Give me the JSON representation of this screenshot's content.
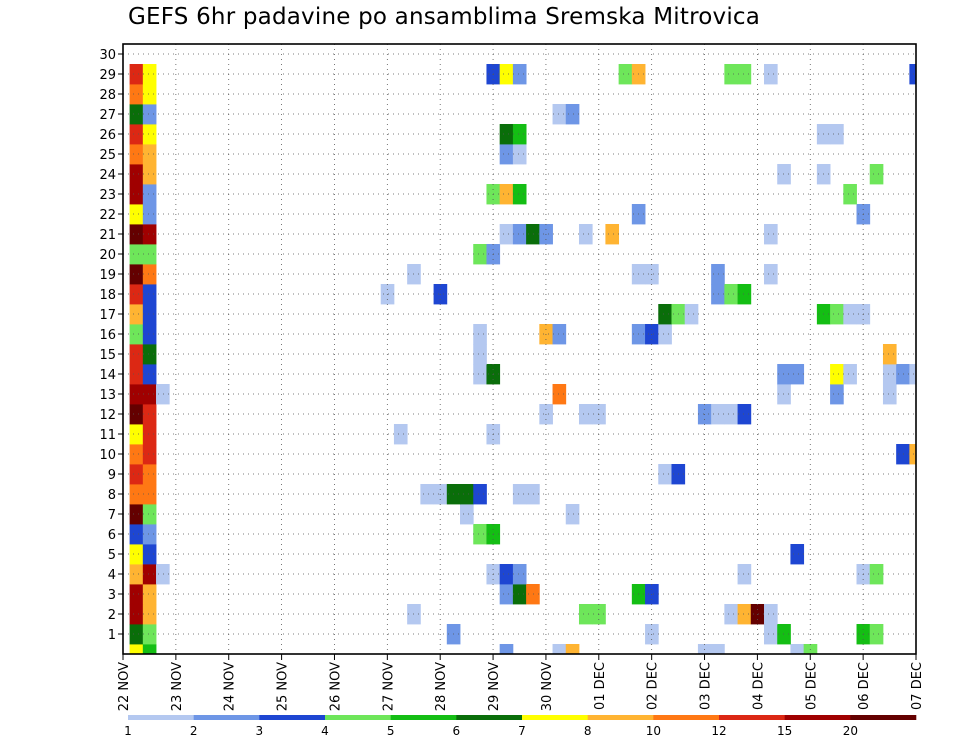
{
  "chart_data": {
    "type": "heatmap",
    "title": "GEFS 6hr padavine po ansamblima Sremska Mitrovica",
    "xlabel": "",
    "ylabel": "",
    "x_ticks": [
      "22 NOV",
      "23 NOV",
      "24 NOV",
      "25 NOV",
      "26 NOV",
      "27 NOV",
      "28 NOV",
      "29 NOV",
      "30 NOV",
      "01 DEC",
      "02 DEC",
      "03 DEC",
      "04 DEC",
      "05 DEC",
      "06 DEC",
      "07 DEC"
    ],
    "x_range": [
      0,
      60
    ],
    "x_unit": "6-hour steps after 22 NOV 00Z",
    "members": [
      0,
      1,
      2,
      3,
      4,
      5,
      6,
      7,
      8,
      9,
      10,
      11,
      12,
      13,
      14,
      15,
      16,
      17,
      18,
      19,
      20,
      21,
      22,
      23,
      24,
      25,
      26,
      27,
      28,
      29,
      30
    ],
    "y_ticks": [
      1,
      2,
      3,
      4,
      5,
      6,
      7,
      8,
      9,
      10,
      11,
      12,
      13,
      14,
      15,
      16,
      17,
      18,
      19,
      20,
      21,
      22,
      23,
      24,
      25,
      26,
      27,
      28,
      29,
      30
    ],
    "grid": true,
    "colorbar": {
      "colors": [
        "#b4c8f0",
        "#6e96e6",
        "#1e46d2",
        "#6ee65a",
        "#14be14",
        "#0a6e0a",
        "#ffff00",
        "#ffb432",
        "#ff7814",
        "#dc2814",
        "#a00000",
        "#640000"
      ],
      "labels": [
        {
          "text": "1",
          "pos": 0
        },
        {
          "text": "2",
          "pos": 1
        },
        {
          "text": "3",
          "pos": 2
        },
        {
          "text": "4",
          "pos": 3
        },
        {
          "text": "5",
          "pos": 4
        },
        {
          "text": "6",
          "pos": 5
        },
        {
          "text": "7",
          "pos": 6
        },
        {
          "text": "8",
          "pos": 7
        },
        {
          "text": "10",
          "pos": 8
        },
        {
          "text": "12",
          "pos": 9
        },
        {
          "text": "15",
          "pos": 10
        },
        {
          "text": "20",
          "pos": 11
        }
      ]
    },
    "cells": [
      {
        "m": 0,
        "t": 1,
        "c": 6
      },
      {
        "m": 0,
        "t": 2,
        "c": 4
      },
      {
        "m": 0,
        "t": 29,
        "c": 1
      },
      {
        "m": 0,
        "t": 33,
        "c": 0
      },
      {
        "m": 0,
        "t": 34,
        "c": 7
      },
      {
        "m": 0,
        "t": 44,
        "c": 0
      },
      {
        "m": 0,
        "t": 45,
        "c": 0
      },
      {
        "m": 0,
        "t": 51,
        "c": 0
      },
      {
        "m": 0,
        "t": 52,
        "c": 3
      },
      {
        "m": 1,
        "t": 1,
        "c": 5
      },
      {
        "m": 1,
        "t": 2,
        "c": 3
      },
      {
        "m": 1,
        "t": 25,
        "c": 1
      },
      {
        "m": 1,
        "t": 40,
        "c": 0
      },
      {
        "m": 1,
        "t": 49,
        "c": 0
      },
      {
        "m": 1,
        "t": 50,
        "c": 4
      },
      {
        "m": 1,
        "t": 56,
        "c": 4
      },
      {
        "m": 1,
        "t": 57,
        "c": 3
      },
      {
        "m": 2,
        "t": 1,
        "c": 10
      },
      {
        "m": 2,
        "t": 2,
        "c": 7
      },
      {
        "m": 2,
        "t": 22,
        "c": 0
      },
      {
        "m": 2,
        "t": 35,
        "c": 3
      },
      {
        "m": 2,
        "t": 36,
        "c": 3
      },
      {
        "m": 2,
        "t": 46,
        "c": 0
      },
      {
        "m": 2,
        "t": 47,
        "c": 7
      },
      {
        "m": 2,
        "t": 48,
        "c": 11
      },
      {
        "m": 2,
        "t": 49,
        "c": 0
      },
      {
        "m": 3,
        "t": 1,
        "c": 10
      },
      {
        "m": 3,
        "t": 2,
        "c": 7
      },
      {
        "m": 3,
        "t": 29,
        "c": 1
      },
      {
        "m": 3,
        "t": 30,
        "c": 5
      },
      {
        "m": 3,
        "t": 31,
        "c": 8
      },
      {
        "m": 3,
        "t": 39,
        "c": 4
      },
      {
        "m": 3,
        "t": 40,
        "c": 2
      },
      {
        "m": 4,
        "t": 1,
        "c": 7
      },
      {
        "m": 4,
        "t": 2,
        "c": 10
      },
      {
        "m": 4,
        "t": 3,
        "c": 0
      },
      {
        "m": 4,
        "t": 28,
        "c": 0
      },
      {
        "m": 4,
        "t": 29,
        "c": 2
      },
      {
        "m": 4,
        "t": 30,
        "c": 1
      },
      {
        "m": 4,
        "t": 47,
        "c": 0
      },
      {
        "m": 4,
        "t": 56,
        "c": 0
      },
      {
        "m": 4,
        "t": 57,
        "c": 3
      },
      {
        "m": 5,
        "t": 1,
        "c": 6
      },
      {
        "m": 5,
        "t": 2,
        "c": 2
      },
      {
        "m": 5,
        "t": 51,
        "c": 2
      },
      {
        "m": 6,
        "t": 1,
        "c": 2
      },
      {
        "m": 6,
        "t": 2,
        "c": 1
      },
      {
        "m": 6,
        "t": 27,
        "c": 3
      },
      {
        "m": 6,
        "t": 28,
        "c": 4
      },
      {
        "m": 7,
        "t": 1,
        "c": 11
      },
      {
        "m": 7,
        "t": 2,
        "c": 3
      },
      {
        "m": 7,
        "t": 26,
        "c": 0
      },
      {
        "m": 7,
        "t": 34,
        "c": 0
      },
      {
        "m": 8,
        "t": 1,
        "c": 8
      },
      {
        "m": 8,
        "t": 2,
        "c": 8
      },
      {
        "m": 8,
        "t": 23,
        "c": 0
      },
      {
        "m": 8,
        "t": 24,
        "c": 0
      },
      {
        "m": 8,
        "t": 25,
        "c": 5
      },
      {
        "m": 8,
        "t": 26,
        "c": 5
      },
      {
        "m": 8,
        "t": 27,
        "c": 2
      },
      {
        "m": 8,
        "t": 30,
        "c": 0
      },
      {
        "m": 8,
        "t": 31,
        "c": 0
      },
      {
        "m": 9,
        "t": 1,
        "c": 9
      },
      {
        "m": 9,
        "t": 2,
        "c": 8
      },
      {
        "m": 9,
        "t": 41,
        "c": 0
      },
      {
        "m": 9,
        "t": 42,
        "c": 2
      },
      {
        "m": 10,
        "t": 1,
        "c": 8
      },
      {
        "m": 10,
        "t": 2,
        "c": 9
      },
      {
        "m": 10,
        "t": 59,
        "c": 2
      },
      {
        "m": 10,
        "t": 60,
        "c": 7
      },
      {
        "m": 11,
        "t": 1,
        "c": 6
      },
      {
        "m": 11,
        "t": 2,
        "c": 9
      },
      {
        "m": 11,
        "t": 21,
        "c": 0
      },
      {
        "m": 11,
        "t": 28,
        "c": 0
      },
      {
        "m": 12,
        "t": 1,
        "c": 11
      },
      {
        "m": 12,
        "t": 2,
        "c": 9
      },
      {
        "m": 12,
        "t": 32,
        "c": 0
      },
      {
        "m": 12,
        "t": 35,
        "c": 0
      },
      {
        "m": 12,
        "t": 36,
        "c": 0
      },
      {
        "m": 12,
        "t": 44,
        "c": 1
      },
      {
        "m": 12,
        "t": 45,
        "c": 0
      },
      {
        "m": 12,
        "t": 46,
        "c": 0
      },
      {
        "m": 12,
        "t": 47,
        "c": 2
      },
      {
        "m": 13,
        "t": 1,
        "c": 10
      },
      {
        "m": 13,
        "t": 2,
        "c": 10
      },
      {
        "m": 13,
        "t": 3,
        "c": 0
      },
      {
        "m": 13,
        "t": 33,
        "c": 8
      },
      {
        "m": 13,
        "t": 50,
        "c": 0
      },
      {
        "m": 13,
        "t": 54,
        "c": 1
      },
      {
        "m": 13,
        "t": 58,
        "c": 0
      },
      {
        "m": 14,
        "t": 1,
        "c": 9
      },
      {
        "m": 14,
        "t": 2,
        "c": 2
      },
      {
        "m": 14,
        "t": 27,
        "c": 0
      },
      {
        "m": 14,
        "t": 28,
        "c": 5
      },
      {
        "m": 14,
        "t": 50,
        "c": 1
      },
      {
        "m": 14,
        "t": 51,
        "c": 1
      },
      {
        "m": 14,
        "t": 54,
        "c": 6
      },
      {
        "m": 14,
        "t": 55,
        "c": 0
      },
      {
        "m": 14,
        "t": 58,
        "c": 0
      },
      {
        "m": 14,
        "t": 59,
        "c": 1
      },
      {
        "m": 14,
        "t": 60,
        "c": 0
      },
      {
        "m": 15,
        "t": 1,
        "c": 9
      },
      {
        "m": 15,
        "t": 2,
        "c": 5
      },
      {
        "m": 15,
        "t": 27,
        "c": 0
      },
      {
        "m": 15,
        "t": 58,
        "c": 7
      },
      {
        "m": 16,
        "t": 1,
        "c": 3
      },
      {
        "m": 16,
        "t": 2,
        "c": 2
      },
      {
        "m": 16,
        "t": 27,
        "c": 0
      },
      {
        "m": 16,
        "t": 32,
        "c": 7
      },
      {
        "m": 16,
        "t": 33,
        "c": 1
      },
      {
        "m": 16,
        "t": 39,
        "c": 1
      },
      {
        "m": 16,
        "t": 40,
        "c": 2
      },
      {
        "m": 16,
        "t": 41,
        "c": 0
      },
      {
        "m": 17,
        "t": 1,
        "c": 7
      },
      {
        "m": 17,
        "t": 2,
        "c": 2
      },
      {
        "m": 17,
        "t": 41,
        "c": 5
      },
      {
        "m": 17,
        "t": 42,
        "c": 3
      },
      {
        "m": 17,
        "t": 43,
        "c": 0
      },
      {
        "m": 17,
        "t": 53,
        "c": 4
      },
      {
        "m": 17,
        "t": 54,
        "c": 3
      },
      {
        "m": 17,
        "t": 55,
        "c": 0
      },
      {
        "m": 17,
        "t": 56,
        "c": 0
      },
      {
        "m": 18,
        "t": 1,
        "c": 9
      },
      {
        "m": 18,
        "t": 2,
        "c": 2
      },
      {
        "m": 18,
        "t": 20,
        "c": 0
      },
      {
        "m": 18,
        "t": 24,
        "c": 2
      },
      {
        "m": 18,
        "t": 45,
        "c": 1
      },
      {
        "m": 18,
        "t": 46,
        "c": 3
      },
      {
        "m": 18,
        "t": 47,
        "c": 4
      },
      {
        "m": 19,
        "t": 1,
        "c": 11
      },
      {
        "m": 19,
        "t": 2,
        "c": 8
      },
      {
        "m": 19,
        "t": 22,
        "c": 0
      },
      {
        "m": 19,
        "t": 39,
        "c": 0
      },
      {
        "m": 19,
        "t": 40,
        "c": 0
      },
      {
        "m": 19,
        "t": 45,
        "c": 1
      },
      {
        "m": 19,
        "t": 49,
        "c": 0
      },
      {
        "m": 20,
        "t": 1,
        "c": 3
      },
      {
        "m": 20,
        "t": 2,
        "c": 3
      },
      {
        "m": 20,
        "t": 27,
        "c": 3
      },
      {
        "m": 20,
        "t": 28,
        "c": 1
      },
      {
        "m": 21,
        "t": 1,
        "c": 11
      },
      {
        "m": 21,
        "t": 2,
        "c": 10
      },
      {
        "m": 21,
        "t": 29,
        "c": 0
      },
      {
        "m": 21,
        "t": 30,
        "c": 1
      },
      {
        "m": 21,
        "t": 31,
        "c": 5
      },
      {
        "m": 21,
        "t": 32,
        "c": 1
      },
      {
        "m": 21,
        "t": 35,
        "c": 0
      },
      {
        "m": 21,
        "t": 37,
        "c": 7
      },
      {
        "m": 21,
        "t": 49,
        "c": 0
      },
      {
        "m": 22,
        "t": 1,
        "c": 6
      },
      {
        "m": 22,
        "t": 2,
        "c": 1
      },
      {
        "m": 22,
        "t": 39,
        "c": 1
      },
      {
        "m": 22,
        "t": 56,
        "c": 1
      },
      {
        "m": 23,
        "t": 1,
        "c": 10
      },
      {
        "m": 23,
        "t": 2,
        "c": 1
      },
      {
        "m": 23,
        "t": 28,
        "c": 3
      },
      {
        "m": 23,
        "t": 29,
        "c": 7
      },
      {
        "m": 23,
        "t": 30,
        "c": 4
      },
      {
        "m": 23,
        "t": 55,
        "c": 3
      },
      {
        "m": 24,
        "t": 1,
        "c": 10
      },
      {
        "m": 24,
        "t": 2,
        "c": 7
      },
      {
        "m": 24,
        "t": 50,
        "c": 0
      },
      {
        "m": 24,
        "t": 53,
        "c": 0
      },
      {
        "m": 24,
        "t": 57,
        "c": 3
      },
      {
        "m": 25,
        "t": 1,
        "c": 8
      },
      {
        "m": 25,
        "t": 2,
        "c": 7
      },
      {
        "m": 25,
        "t": 29,
        "c": 1
      },
      {
        "m": 25,
        "t": 30,
        "c": 0
      },
      {
        "m": 26,
        "t": 1,
        "c": 9
      },
      {
        "m": 26,
        "t": 2,
        "c": 6
      },
      {
        "m": 26,
        "t": 29,
        "c": 5
      },
      {
        "m": 26,
        "t": 30,
        "c": 4
      },
      {
        "m": 26,
        "t": 53,
        "c": 0
      },
      {
        "m": 26,
        "t": 54,
        "c": 0
      },
      {
        "m": 27,
        "t": 1,
        "c": 5
      },
      {
        "m": 27,
        "t": 2,
        "c": 1
      },
      {
        "m": 27,
        "t": 33,
        "c": 0
      },
      {
        "m": 27,
        "t": 34,
        "c": 1
      },
      {
        "m": 28,
        "t": 1,
        "c": 8
      },
      {
        "m": 28,
        "t": 2,
        "c": 6
      },
      {
        "m": 29,
        "t": 1,
        "c": 9
      },
      {
        "m": 29,
        "t": 2,
        "c": 6
      },
      {
        "m": 29,
        "t": 28,
        "c": 2
      },
      {
        "m": 29,
        "t": 29,
        "c": 6
      },
      {
        "m": 29,
        "t": 30,
        "c": 1
      },
      {
        "m": 29,
        "t": 38,
        "c": 3
      },
      {
        "m": 29,
        "t": 39,
        "c": 7
      },
      {
        "m": 29,
        "t": 46,
        "c": 3
      },
      {
        "m": 29,
        "t": 47,
        "c": 3
      },
      {
        "m": 29,
        "t": 49,
        "c": 0
      },
      {
        "m": 29,
        "t": 60,
        "c": 2
      }
    ]
  }
}
